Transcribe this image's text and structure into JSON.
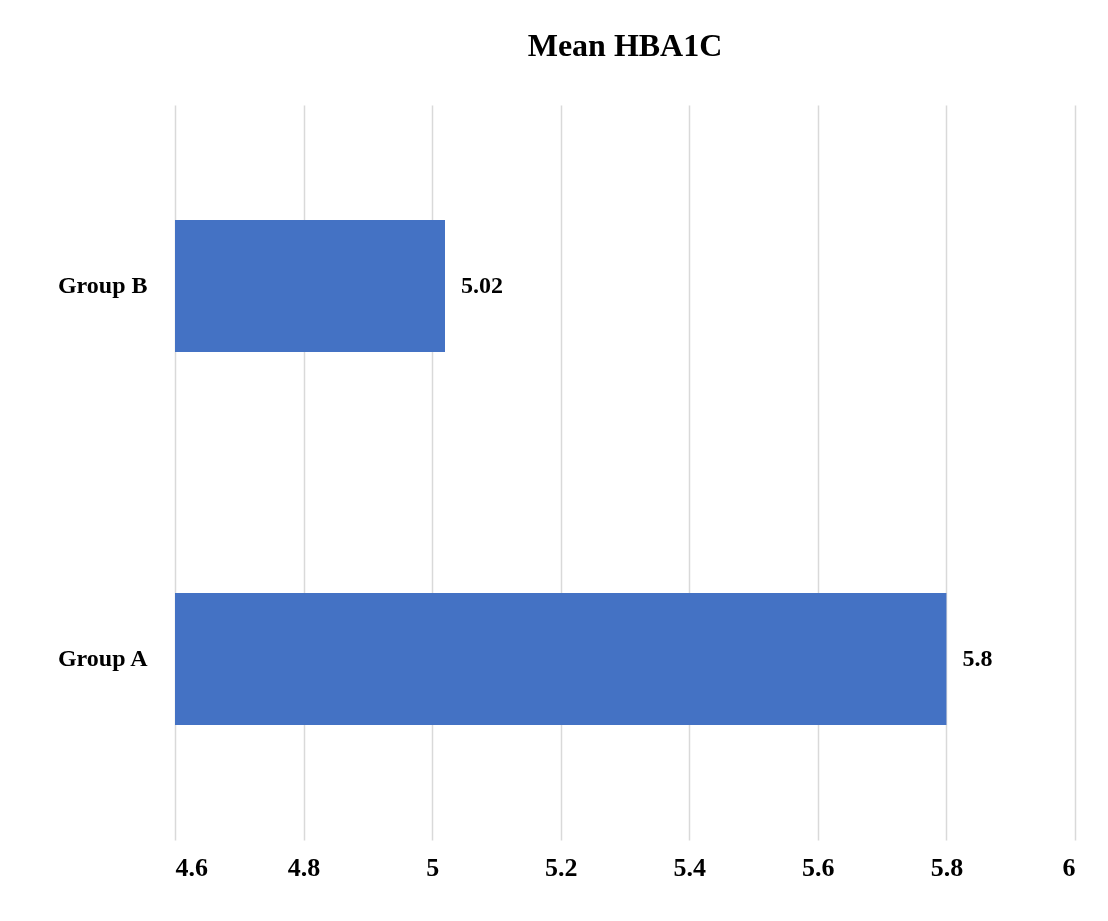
{
  "chart_data": {
    "type": "bar",
    "orientation": "horizontal",
    "title": "Mean HBA1C",
    "categories": [
      "Group B",
      "Group A"
    ],
    "values": [
      5.02,
      5.8
    ],
    "color": "#4472c4",
    "xlim": [
      4.6,
      6
    ],
    "xticks": [
      4.6,
      4.8,
      5,
      5.2,
      5.4,
      5.6,
      5.8,
      6
    ],
    "grid": "x",
    "data_labels": true
  }
}
